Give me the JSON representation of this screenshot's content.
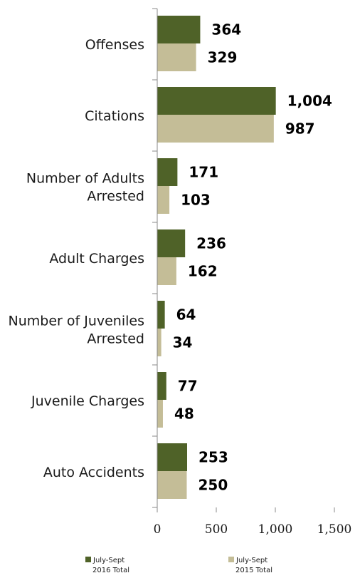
{
  "chart_data": {
    "type": "bar",
    "orientation": "horizontal",
    "categories": [
      [
        "Offenses"
      ],
      [
        "Citations"
      ],
      [
        "Number of Adults",
        "Arrested"
      ],
      [
        "Adult  Charges"
      ],
      [
        "Number of Juveniles",
        "Arrested"
      ],
      [
        "Juvenile  Charges"
      ],
      [
        "Auto Accidents"
      ]
    ],
    "series": [
      {
        "name": [
          "July-Sept",
          "2016 Total"
        ],
        "color": "#4f6228",
        "values": [
          364,
          1004,
          171,
          236,
          64,
          77,
          253
        ],
        "labels": [
          "364",
          "1,004",
          "171",
          "236",
          "64",
          "77",
          "253"
        ]
      },
      {
        "name": [
          "July-Sept",
          "2015 Total"
        ],
        "color": "#c4bd97",
        "values": [
          329,
          987,
          103,
          162,
          34,
          48,
          250
        ],
        "labels": [
          "329",
          "987",
          "103",
          "162",
          "34",
          "48",
          "250"
        ]
      }
    ],
    "xlim": [
      0,
      1500
    ],
    "xticks": [
      0,
      500,
      1000,
      1500
    ],
    "xtick_labels": [
      "0",
      "500",
      "1,000",
      "1,500"
    ],
    "grid": false,
    "legend_position": "bottom"
  }
}
